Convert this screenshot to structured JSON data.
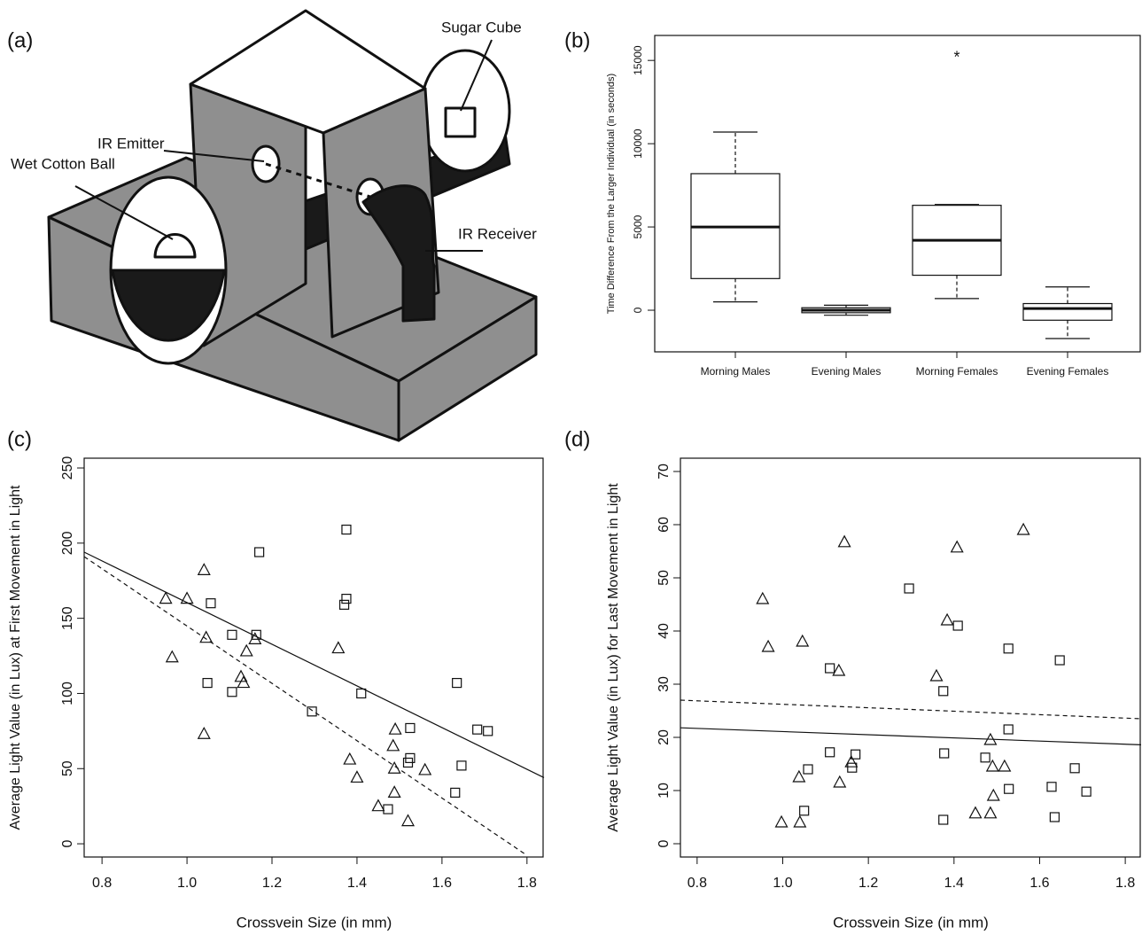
{
  "diagram": {
    "panel_label": "(a)",
    "labels": [
      "Sugar Cube",
      "IR Emitter",
      "Wet Cotton Ball",
      "IR Receiver"
    ]
  },
  "chart_data": [
    {
      "type": "boxplot",
      "panel_label": "(b)",
      "y_label": "Time Difference From the Larger Individual (in seconds)",
      "categories": [
        "Morning Males",
        "Evening Males",
        "Morning Females",
        "Evening Females"
      ],
      "boxes": [
        {
          "whislo": 500,
          "q1": 1900,
          "median": 5000,
          "q3": 8200,
          "whishi": 10700
        },
        {
          "whislo": -300,
          "q1": -150,
          "median": 0,
          "q3": 150,
          "whishi": 300
        },
        {
          "whislo": 700,
          "q1": 2100,
          "median": 4200,
          "q3": 6300,
          "whishi": 6350,
          "outliers": [
            15300
          ]
        },
        {
          "whislo": -1700,
          "q1": -600,
          "median": 100,
          "q3": 400,
          "whishi": 1400
        }
      ],
      "ylim": [
        -2500,
        16500
      ],
      "yticks": [
        0,
        5000,
        10000,
        15000
      ]
    },
    {
      "type": "scatter",
      "panel_label": "(c)",
      "x_label": "Crossvein Size (in mm)",
      "y_label": "Average Light Value (in Lux) at First Movement in Light",
      "xlim": [
        0.758,
        1.84
      ],
      "xticks": [
        0.8,
        {
          "value": 1,
          "label": "1.0"
        },
        1.2,
        1.4,
        1.6,
        1.8
      ],
      "ylim": [
        -8.8,
        256.5
      ],
      "yticks": [
        0,
        50,
        100,
        150,
        200,
        250
      ],
      "series": [
        {
          "marker": "triangle",
          "x": [
            0.95,
            1.0,
            1.04,
            0.965,
            1.045,
            1.04,
            1.14,
            1.127,
            1.133,
            1.16,
            1.356,
            1.383,
            1.4,
            1.49,
            1.485,
            1.488,
            1.488,
            1.56,
            1.45,
            1.52
          ],
          "values": [
            163,
            163,
            182,
            124,
            137,
            73,
            128,
            111,
            107,
            136,
            130,
            56,
            44,
            76,
            65,
            50,
            34,
            49,
            25,
            15
          ]
        },
        {
          "marker": "square",
          "x": [
            1.17,
            1.375,
            1.375,
            1.37,
            1.056,
            1.106,
            1.163,
            1.048,
            1.106,
            1.41,
            1.294,
            1.525,
            1.525,
            1.52,
            1.473,
            1.635,
            1.631,
            1.646,
            1.683,
            1.708
          ],
          "values": [
            194,
            209,
            163,
            159,
            160,
            139,
            139,
            107,
            101,
            100,
            88,
            77,
            57,
            54,
            23,
            107,
            34,
            52,
            76,
            75
          ]
        }
      ],
      "lines": [
        {
          "style": "solid",
          "x": [
            0.758,
            1.84
          ],
          "values": [
            194,
            44
          ]
        },
        {
          "style": "dashed",
          "x": [
            0.758,
            1.8
          ],
          "values": [
            191,
            -7.7
          ]
        }
      ]
    },
    {
      "type": "scatter",
      "panel_label": "(d)",
      "x_label": "Crossvein Size (in mm)",
      "y_label": "Average Light Value (in Lux) for Last Movement in Light",
      "xlim": [
        0.761,
        1.837
      ],
      "xticks": [
        0.8,
        {
          "value": 1,
          "label": "1.0"
        },
        1.2,
        1.4,
        1.6,
        1.8
      ],
      "ylim": [
        -2.5,
        72.5
      ],
      "yticks": [
        0,
        10,
        20,
        30,
        40,
        50,
        60,
        70
      ],
      "series": [
        {
          "marker": "triangle",
          "x": [
            0.953,
            0.966,
            1.046,
            1.144,
            1.131,
            1.407,
            1.384,
            1.359,
            1.485,
            1.49,
            1.518,
            1.492,
            1.485,
            1.45,
            1.562,
            0.997,
            1.04,
            1.038,
            1.133,
            1.16
          ],
          "values": [
            46,
            37,
            38,
            56.7,
            32.5,
            55.7,
            42,
            31.5,
            19.5,
            14.5,
            14.5,
            9,
            5.7,
            5.7,
            59,
            4,
            4,
            12.5,
            11.5,
            15.3
          ]
        },
        {
          "marker": "square",
          "x": [
            1.295,
            1.409,
            1.527,
            1.647,
            1.11,
            1.375,
            1.527,
            1.377,
            1.17,
            1.11,
            1.162,
            1.059,
            1.05,
            1.375,
            1.473,
            1.528,
            1.628,
            1.682,
            1.709,
            1.635
          ],
          "values": [
            48,
            41,
            36.7,
            34.5,
            33,
            28.7,
            21.5,
            17,
            16.8,
            17.2,
            14.3,
            14,
            6.2,
            4.5,
            16.2,
            10.3,
            10.7,
            14.2,
            9.8,
            5
          ]
        }
      ],
      "lines": [
        {
          "style": "solid",
          "x": [
            0.761,
            1.837
          ],
          "values": [
            21.8,
            18.6
          ]
        },
        {
          "style": "dashed",
          "x": [
            0.761,
            1.837
          ],
          "values": [
            27,
            23.5
          ]
        }
      ]
    }
  ]
}
